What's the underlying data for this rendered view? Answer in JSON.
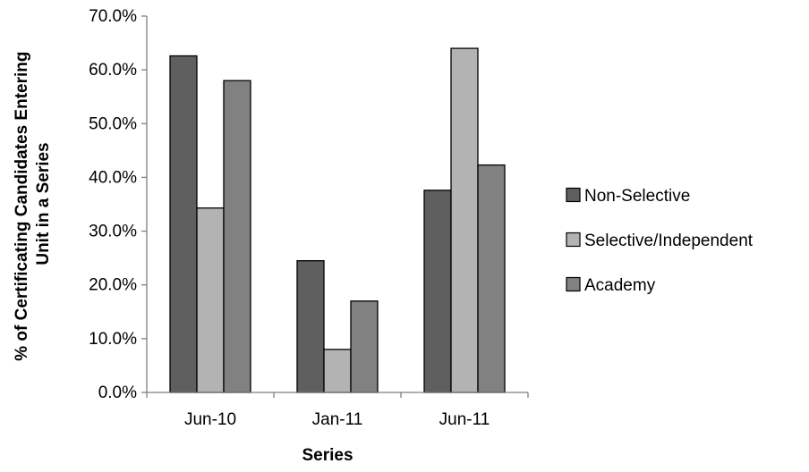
{
  "chart_data": {
    "type": "bar",
    "title": "",
    "xlabel": "Series",
    "ylabel_lines": [
      "% of Certificating Candidates Entering",
      "Unit in a Series"
    ],
    "categories": [
      "Jun-10",
      "Jan-11",
      "Jun-11"
    ],
    "series": [
      {
        "name": "Non-Selective",
        "values": [
          62.6,
          24.5,
          37.6
        ],
        "color": "#5f5f5f"
      },
      {
        "name": "Selective/Independent",
        "values": [
          34.3,
          8.0,
          64.0
        ],
        "color": "#b3b3b3"
      },
      {
        "name": "Academy",
        "values": [
          58.0,
          17.0,
          42.3
        ],
        "color": "#818181"
      }
    ],
    "ylim": [
      0,
      70
    ],
    "y_ticks": [
      0,
      10,
      20,
      30,
      40,
      50,
      60,
      70
    ],
    "y_tick_labels": [
      "0.0%",
      "10.0%",
      "20.0%",
      "30.0%",
      "40.0%",
      "50.0%",
      "60.0%",
      "70.0%"
    ],
    "grid": false,
    "legend_position": "right"
  }
}
